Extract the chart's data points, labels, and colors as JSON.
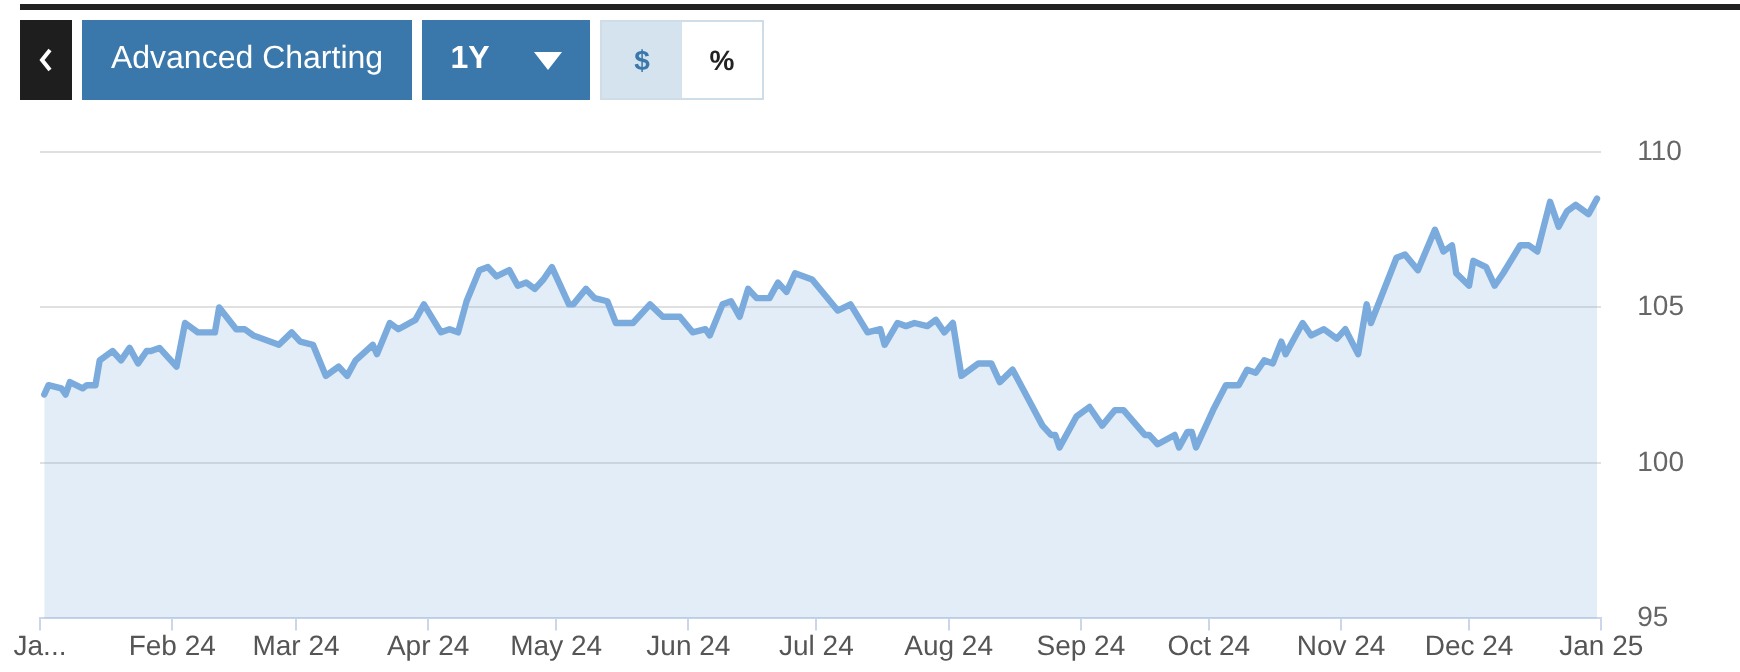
{
  "chart_data": {
    "type": "area",
    "annotations": [
      "Advanced Charting",
      "1Y",
      "$",
      "%"
    ],
    "x": [
      "2024-01-02",
      "2024-01-03",
      "2024-01-06",
      "2024-01-07",
      "2024-01-08",
      "2024-01-11",
      "2024-01-12",
      "2024-01-14",
      "2024-01-15",
      "2024-01-18",
      "2024-01-20",
      "2024-01-22",
      "2024-01-24",
      "2024-01-26",
      "2024-01-27",
      "2024-01-29",
      "2024-02-02",
      "2024-02-04",
      "2024-02-07",
      "2024-02-09",
      "2024-02-11",
      "2024-02-12",
      "2024-02-16",
      "2024-02-18",
      "2024-02-20",
      "2024-02-26",
      "2024-02-29",
      "2024-03-02",
      "2024-03-05",
      "2024-03-08",
      "2024-03-11",
      "2024-03-13",
      "2024-03-15",
      "2024-03-19",
      "2024-03-20",
      "2024-03-23",
      "2024-03-25",
      "2024-03-29",
      "2024-03-31",
      "2024-04-04",
      "2024-04-06",
      "2024-04-08",
      "2024-04-10",
      "2024-04-13",
      "2024-04-15",
      "2024-04-17",
      "2024-04-20",
      "2024-04-22",
      "2024-04-24",
      "2024-04-26",
      "2024-04-28",
      "2024-04-30",
      "2024-05-04",
      "2024-05-05",
      "2024-05-08",
      "2024-05-10",
      "2024-05-13",
      "2024-05-15",
      "2024-05-19",
      "2024-05-23",
      "2024-05-26",
      "2024-05-30",
      "2024-06-02",
      "2024-06-05",
      "2024-06-06",
      "2024-06-09",
      "2024-06-11",
      "2024-06-13",
      "2024-06-15",
      "2024-06-17",
      "2024-06-20",
      "2024-06-22",
      "2024-06-24",
      "2024-06-26",
      "2024-06-30",
      "2024-07-06",
      "2024-07-09",
      "2024-07-13",
      "2024-07-16",
      "2024-07-17",
      "2024-07-20",
      "2024-07-22",
      "2024-07-24",
      "2024-07-27",
      "2024-07-29",
      "2024-07-31",
      "2024-08-02",
      "2024-08-04",
      "2024-08-08",
      "2024-08-11",
      "2024-08-13",
      "2024-08-16",
      "2024-08-23",
      "2024-08-25",
      "2024-08-26",
      "2024-08-27",
      "2024-08-31",
      "2024-09-03",
      "2024-09-06",
      "2024-09-09",
      "2024-09-11",
      "2024-09-16",
      "2024-09-17",
      "2024-09-19",
      "2024-09-23",
      "2024-09-24",
      "2024-09-26",
      "2024-09-27",
      "2024-09-28",
      "2024-10-02",
      "2024-10-05",
      "2024-10-08",
      "2024-10-10",
      "2024-10-12",
      "2024-10-14",
      "2024-10-16",
      "2024-10-18",
      "2024-10-19",
      "2024-10-21",
      "2024-10-23",
      "2024-10-25",
      "2024-10-28",
      "2024-10-31",
      "2024-11-02",
      "2024-11-05",
      "2024-11-07",
      "2024-11-08",
      "2024-11-14",
      "2024-11-16",
      "2024-11-19",
      "2024-11-23",
      "2024-11-25",
      "2024-11-27",
      "2024-11-28",
      "2024-12-01",
      "2024-12-02",
      "2024-12-05",
      "2024-12-07",
      "2024-12-09",
      "2024-12-13",
      "2024-12-15",
      "2024-12-17",
      "2024-12-20",
      "2024-12-22",
      "2024-12-24",
      "2024-12-26",
      "2024-12-29",
      "2024-12-31"
    ],
    "series": [
      {
        "color": "#7aabdc",
        "values": [
          102.2,
          102.5,
          102.4,
          102.2,
          102.6,
          102.4,
          102.5,
          102.5,
          103.3,
          103.6,
          103.3,
          103.7,
          103.2,
          103.6,
          103.6,
          103.7,
          103.1,
          104.5,
          104.2,
          104.2,
          104.2,
          105.0,
          104.3,
          104.3,
          104.1,
          103.8,
          104.2,
          103.9,
          103.8,
          102.8,
          103.1,
          102.8,
          103.3,
          103.8,
          103.5,
          104.5,
          104.3,
          104.6,
          105.1,
          104.2,
          104.3,
          104.2,
          105.2,
          106.2,
          106.3,
          106.0,
          106.2,
          105.7,
          105.8,
          105.6,
          105.9,
          106.3,
          105.1,
          105.1,
          105.6,
          105.3,
          105.2,
          104.5,
          104.5,
          105.1,
          104.7,
          104.7,
          104.2,
          104.3,
          104.1,
          105.1,
          105.2,
          104.7,
          105.6,
          105.3,
          105.3,
          105.8,
          105.5,
          106.1,
          105.9,
          104.9,
          105.1,
          104.2,
          104.3,
          103.8,
          104.5,
          104.4,
          104.5,
          104.4,
          104.6,
          104.2,
          104.5,
          102.8,
          103.2,
          103.2,
          102.6,
          103.0,
          101.2,
          100.9,
          100.9,
          100.5,
          101.5,
          101.8,
          101.2,
          101.7,
          101.7,
          100.9,
          100.9,
          100.6,
          100.9,
          100.5,
          101.0,
          101.0,
          100.5,
          101.7,
          102.5,
          102.5,
          103.0,
          102.9,
          103.3,
          103.2,
          103.9,
          103.5,
          104.0,
          104.5,
          104.1,
          104.3,
          104.0,
          104.3,
          103.5,
          105.1,
          104.5,
          106.6,
          106.7,
          106.2,
          107.5,
          106.8,
          107.0,
          106.1,
          105.7,
          106.5,
          106.3,
          105.7,
          106.1,
          107.0,
          107.0,
          106.8,
          108.4,
          107.6,
          108.1,
          108.3,
          108.0,
          108.5
        ]
      }
    ],
    "xlim": [
      "2024-01-01",
      "2025-01-01"
    ],
    "xticks": [
      {
        "value": "2024-01-01",
        "label": "Ja..."
      },
      {
        "value": "2024-02-01",
        "label": "Feb 24"
      },
      {
        "value": "2024-03-01",
        "label": "Mar 24"
      },
      {
        "value": "2024-04-01",
        "label": "Apr 24"
      },
      {
        "value": "2024-05-01",
        "label": "May 24"
      },
      {
        "value": "2024-06-01",
        "label": "Jun 24"
      },
      {
        "value": "2024-07-01",
        "label": "Jul 24"
      },
      {
        "value": "2024-08-01",
        "label": "Aug 24"
      },
      {
        "value": "2024-09-01",
        "label": "Sep 24"
      },
      {
        "value": "2024-10-01",
        "label": "Oct 24"
      },
      {
        "value": "2024-11-01",
        "label": "Nov 24"
      },
      {
        "value": "2024-12-01",
        "label": "Dec 24"
      },
      {
        "value": "2025-01-01",
        "label": "Jan 25"
      }
    ],
    "ylim": [
      95,
      110
    ],
    "yticks": [
      95,
      100,
      105,
      110
    ],
    "grid": "y"
  }
}
